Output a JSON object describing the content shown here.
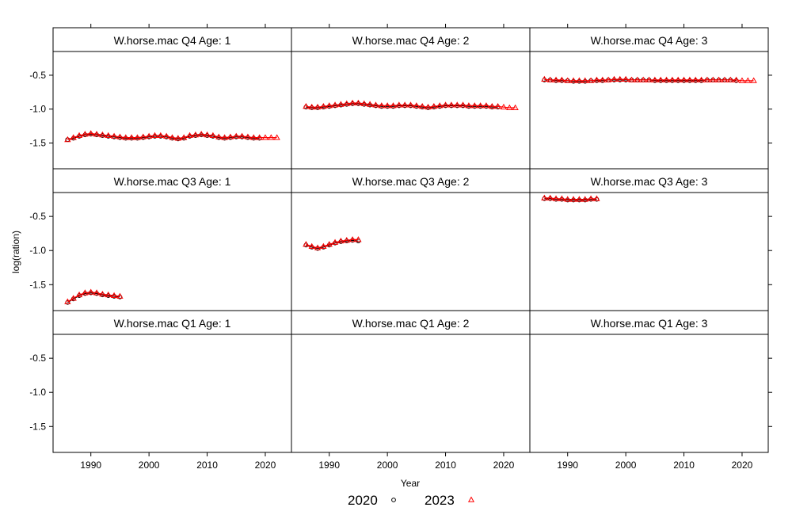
{
  "chart_data": {
    "type": "scatter",
    "xlabel": "Year",
    "ylabel": "log(ration)",
    "xlim": [
      1983.5,
      2024.5
    ],
    "ylim": [
      -1.88,
      -0.15
    ],
    "xticks": [
      1990,
      2000,
      2010,
      2020
    ],
    "yticks": [
      -1.5,
      -1.0,
      -0.5
    ],
    "yticklabels": [
      "-1.5",
      "-1.0",
      "-0.5"
    ],
    "grid": false,
    "legend_position": "bottom",
    "legend": [
      {
        "label": "2020",
        "marker": "circle",
        "color": "#000000"
      },
      {
        "label": "2023",
        "marker": "triangle",
        "color": "#ff0000"
      }
    ],
    "series_colors": {
      "2020": "#000000",
      "2023": "#ff0000"
    },
    "panels": [
      {
        "title": "W.horse.mac Q4 Age: 1",
        "row": 0,
        "col": 0,
        "series": [
          {
            "name": "2020",
            "x": [
              1986,
              1987,
              1988,
              1989,
              1990,
              1991,
              1992,
              1993,
              1994,
              1995,
              1996,
              1997,
              1998,
              1999,
              2000,
              2001,
              2002,
              2003,
              2004,
              2005,
              2006,
              2007,
              2008,
              2009,
              2010,
              2011,
              2012,
              2013,
              2014,
              2015,
              2016,
              2017,
              2018,
              2019
            ],
            "y": [
              -1.45,
              -1.43,
              -1.4,
              -1.38,
              -1.37,
              -1.38,
              -1.39,
              -1.4,
              -1.41,
              -1.42,
              -1.43,
              -1.43,
              -1.43,
              -1.42,
              -1.41,
              -1.4,
              -1.4,
              -1.41,
              -1.43,
              -1.44,
              -1.43,
              -1.4,
              -1.39,
              -1.38,
              -1.39,
              -1.4,
              -1.42,
              -1.43,
              -1.42,
              -1.41,
              -1.41,
              -1.42,
              -1.43,
              -1.43
            ]
          },
          {
            "name": "2023",
            "x": [
              1986,
              1987,
              1988,
              1989,
              1990,
              1991,
              1992,
              1993,
              1994,
              1995,
              1996,
              1997,
              1998,
              1999,
              2000,
              2001,
              2002,
              2003,
              2004,
              2005,
              2006,
              2007,
              2008,
              2009,
              2010,
              2011,
              2012,
              2013,
              2014,
              2015,
              2016,
              2017,
              2018,
              2019,
              2020,
              2021,
              2022
            ],
            "y": [
              -1.45,
              -1.42,
              -1.39,
              -1.37,
              -1.36,
              -1.37,
              -1.38,
              -1.39,
              -1.4,
              -1.41,
              -1.42,
              -1.42,
              -1.42,
              -1.41,
              -1.4,
              -1.39,
              -1.39,
              -1.4,
              -1.42,
              -1.43,
              -1.42,
              -1.39,
              -1.38,
              -1.37,
              -1.38,
              -1.39,
              -1.41,
              -1.42,
              -1.41,
              -1.4,
              -1.4,
              -1.41,
              -1.42,
              -1.42,
              -1.42,
              -1.42,
              -1.42
            ]
          }
        ]
      },
      {
        "title": "W.horse.mac Q4 Age: 2",
        "row": 0,
        "col": 1,
        "series": [
          {
            "name": "2020",
            "x": [
              1986,
              1987,
              1988,
              1989,
              1990,
              1991,
              1992,
              1993,
              1994,
              1995,
              1996,
              1997,
              1998,
              1999,
              2000,
              2001,
              2002,
              2003,
              2004,
              2005,
              2006,
              2007,
              2008,
              2009,
              2010,
              2011,
              2012,
              2013,
              2014,
              2015,
              2016,
              2017,
              2018,
              2019
            ],
            "y": [
              -0.97,
              -0.98,
              -0.98,
              -0.97,
              -0.96,
              -0.95,
              -0.94,
              -0.93,
              -0.92,
              -0.92,
              -0.93,
              -0.94,
              -0.95,
              -0.96,
              -0.96,
              -0.96,
              -0.95,
              -0.95,
              -0.95,
              -0.96,
              -0.97,
              -0.98,
              -0.97,
              -0.96,
              -0.95,
              -0.95,
              -0.95,
              -0.95,
              -0.96,
              -0.96,
              -0.96,
              -0.96,
              -0.97,
              -0.97
            ]
          },
          {
            "name": "2023",
            "x": [
              1986,
              1987,
              1988,
              1989,
              1990,
              1991,
              1992,
              1993,
              1994,
              1995,
              1996,
              1997,
              1998,
              1999,
              2000,
              2001,
              2002,
              2003,
              2004,
              2005,
              2006,
              2007,
              2008,
              2009,
              2010,
              2011,
              2012,
              2013,
              2014,
              2015,
              2016,
              2017,
              2018,
              2019,
              2020,
              2021,
              2022
            ],
            "y": [
              -0.96,
              -0.97,
              -0.97,
              -0.96,
              -0.95,
              -0.94,
              -0.93,
              -0.92,
              -0.91,
              -0.91,
              -0.92,
              -0.93,
              -0.94,
              -0.95,
              -0.95,
              -0.95,
              -0.94,
              -0.94,
              -0.94,
              -0.95,
              -0.96,
              -0.97,
              -0.96,
              -0.95,
              -0.94,
              -0.94,
              -0.94,
              -0.94,
              -0.95,
              -0.95,
              -0.95,
              -0.95,
              -0.96,
              -0.96,
              -0.97,
              -0.98,
              -0.98
            ]
          }
        ]
      },
      {
        "title": "W.horse.mac Q4 Age: 3",
        "row": 0,
        "col": 2,
        "series": [
          {
            "name": "2020",
            "x": [
              1986,
              1987,
              1988,
              1989,
              1990,
              1991,
              1992,
              1993,
              1994,
              1995,
              1996,
              1997,
              1998,
              1999,
              2000,
              2001,
              2002,
              2003,
              2004,
              2005,
              2006,
              2007,
              2008,
              2009,
              2010,
              2011,
              2012,
              2013,
              2014,
              2015,
              2016,
              2017,
              2018,
              2019
            ],
            "y": [
              -0.57,
              -0.57,
              -0.58,
              -0.58,
              -0.58,
              -0.59,
              -0.59,
              -0.59,
              -0.58,
              -0.58,
              -0.58,
              -0.57,
              -0.57,
              -0.57,
              -0.57,
              -0.57,
              -0.57,
              -0.57,
              -0.57,
              -0.58,
              -0.58,
              -0.58,
              -0.58,
              -0.58,
              -0.58,
              -0.58,
              -0.58,
              -0.58,
              -0.57,
              -0.57,
              -0.57,
              -0.57,
              -0.57,
              -0.58
            ]
          },
          {
            "name": "2023",
            "x": [
              1986,
              1987,
              1988,
              1989,
              1990,
              1991,
              1992,
              1993,
              1994,
              1995,
              1996,
              1997,
              1998,
              1999,
              2000,
              2001,
              2002,
              2003,
              2004,
              2005,
              2006,
              2007,
              2008,
              2009,
              2010,
              2011,
              2012,
              2013,
              2014,
              2015,
              2016,
              2017,
              2018,
              2019,
              2020,
              2021,
              2022
            ],
            "y": [
              -0.56,
              -0.57,
              -0.57,
              -0.57,
              -0.58,
              -0.58,
              -0.58,
              -0.58,
              -0.58,
              -0.57,
              -0.57,
              -0.57,
              -0.56,
              -0.56,
              -0.56,
              -0.57,
              -0.57,
              -0.57,
              -0.57,
              -0.57,
              -0.57,
              -0.57,
              -0.57,
              -0.57,
              -0.57,
              -0.57,
              -0.57,
              -0.57,
              -0.57,
              -0.57,
              -0.57,
              -0.57,
              -0.57,
              -0.57,
              -0.58,
              -0.58,
              -0.58
            ]
          }
        ]
      },
      {
        "title": "W.horse.mac Q3 Age: 1",
        "row": 1,
        "col": 0,
        "series": [
          {
            "name": "2020",
            "x": [
              1986,
              1987,
              1988,
              1989,
              1990,
              1991,
              1992,
              1993,
              1994,
              1995
            ],
            "y": [
              -1.76,
              -1.71,
              -1.66,
              -1.63,
              -1.62,
              -1.63,
              -1.65,
              -1.66,
              -1.67,
              -1.68
            ]
          },
          {
            "name": "2023",
            "x": [
              1986,
              1987,
              1988,
              1989,
              1990,
              1991,
              1992,
              1993,
              1994,
              1995
            ],
            "y": [
              -1.75,
              -1.7,
              -1.65,
              -1.62,
              -1.61,
              -1.62,
              -1.64,
              -1.65,
              -1.66,
              -1.67
            ]
          }
        ]
      },
      {
        "title": "W.horse.mac Q3 Age: 2",
        "row": 1,
        "col": 1,
        "series": [
          {
            "name": "2020",
            "x": [
              1986,
              1987,
              1988,
              1989,
              1990,
              1991,
              1992,
              1993,
              1994,
              1995
            ],
            "y": [
              -0.92,
              -0.95,
              -0.97,
              -0.95,
              -0.92,
              -0.89,
              -0.87,
              -0.86,
              -0.85,
              -0.86
            ]
          },
          {
            "name": "2023",
            "x": [
              1986,
              1987,
              1988,
              1989,
              1990,
              1991,
              1992,
              1993,
              1994,
              1995
            ],
            "y": [
              -0.91,
              -0.94,
              -0.96,
              -0.94,
              -0.91,
              -0.88,
              -0.86,
              -0.85,
              -0.84,
              -0.84
            ]
          }
        ]
      },
      {
        "title": "W.horse.mac Q3 Age: 3",
        "row": 1,
        "col": 2,
        "series": [
          {
            "name": "2020",
            "x": [
              1986,
              1987,
              1988,
              1989,
              1990,
              1991,
              1992,
              1993,
              1994,
              1995
            ],
            "y": [
              -0.24,
              -0.24,
              -0.25,
              -0.25,
              -0.26,
              -0.26,
              -0.26,
              -0.26,
              -0.25,
              -0.25
            ]
          },
          {
            "name": "2023",
            "x": [
              1986,
              1987,
              1988,
              1989,
              1990,
              1991,
              1992,
              1993,
              1994,
              1995
            ],
            "y": [
              -0.23,
              -0.23,
              -0.24,
              -0.24,
              -0.25,
              -0.25,
              -0.25,
              -0.25,
              -0.24,
              -0.24
            ]
          }
        ]
      },
      {
        "title": "W.horse.mac Q1 Age: 1",
        "row": 2,
        "col": 0,
        "series": []
      },
      {
        "title": "W.horse.mac Q1 Age: 2",
        "row": 2,
        "col": 1,
        "series": []
      },
      {
        "title": "W.horse.mac Q1 Age: 3",
        "row": 2,
        "col": 2,
        "series": []
      }
    ]
  }
}
